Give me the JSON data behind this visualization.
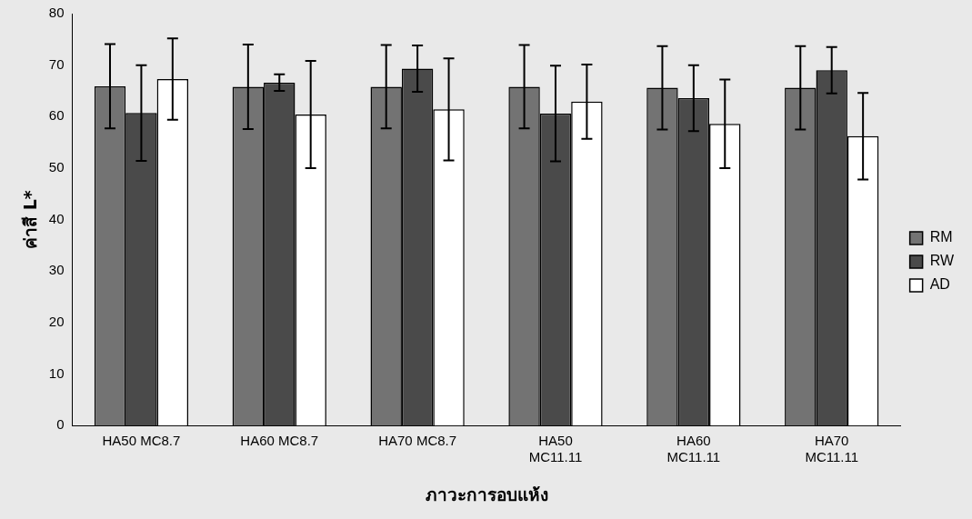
{
  "chart_data": {
    "type": "bar",
    "xlabel": "ภาวะการอบแห้ง",
    "ylabel": "ค่าสี L*",
    "categories": [
      "HA50 MC8.7",
      "HA60 MC8.7",
      "HA70 MC8.7",
      "HA50 MC11.11",
      "HA60 MC11.11",
      "HA70 MC11.11"
    ],
    "series": [
      {
        "name": "RM",
        "color": "#737373",
        "values": [
          65.9,
          65.8,
          65.8,
          65.8,
          65.6,
          65.6
        ],
        "errors": [
          8.2,
          8.2,
          8.1,
          8.1,
          8.1,
          8.1
        ]
      },
      {
        "name": "RW",
        "color": "#4a4a4a",
        "values": [
          60.7,
          66.6,
          69.3,
          60.6,
          63.6,
          69.0
        ],
        "errors": [
          9.3,
          1.6,
          4.5,
          9.3,
          6.4,
          4.5
        ]
      },
      {
        "name": "AD",
        "color": "#ffffff",
        "values": [
          67.3,
          60.4,
          61.4,
          62.9,
          58.6,
          56.2
        ],
        "errors": [
          7.9,
          10.4,
          9.9,
          7.2,
          8.6,
          8.4
        ]
      }
    ],
    "ylim": [
      0,
      80
    ],
    "yticks": [
      0,
      10,
      20,
      30,
      40,
      50,
      60,
      70,
      80
    ],
    "grid": false,
    "legend": "right"
  }
}
